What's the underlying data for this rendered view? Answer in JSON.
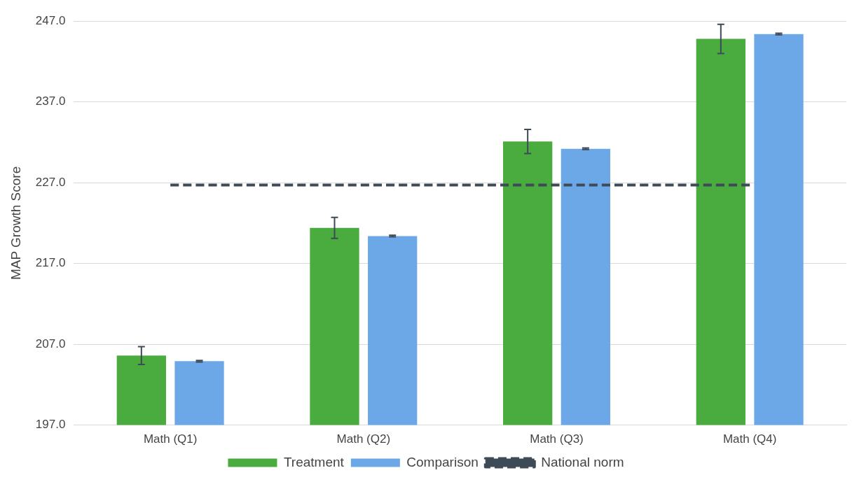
{
  "chart_data": {
    "type": "bar",
    "ylabel": "MAP Growth Score",
    "categories": [
      "Math (Q1)",
      "Math (Q2)",
      "Math (Q3)",
      "Math (Q4)"
    ],
    "series": [
      {
        "name": "Treatment",
        "color": "#4aab3e",
        "values": [
          205.6,
          221.4,
          232.1,
          244.8
        ],
        "errors": [
          1.1,
          1.3,
          1.5,
          1.8
        ]
      },
      {
        "name": "Comparison",
        "color": "#6ca8e8",
        "values": [
          204.9,
          220.4,
          231.2,
          245.4
        ],
        "errors": [
          0.1,
          0.1,
          0.1,
          0.1
        ]
      },
      {
        "name": "National norm",
        "type": "line",
        "color": "#3e4a56",
        "values": [
          226.7,
          226.7,
          226.7,
          226.7
        ],
        "line_style": "dashed",
        "marker": "none"
      }
    ],
    "ylim": [
      197,
      247
    ],
    "yticks": [
      {
        "value": 197,
        "label": "197.0"
      },
      {
        "value": 207,
        "label": "207.0"
      },
      {
        "value": 217,
        "label": "217.0"
      },
      {
        "value": 227,
        "label": "227.0"
      },
      {
        "value": 237,
        "label": "237.0"
      },
      {
        "value": 247,
        "label": "247.0"
      }
    ],
    "grid": "y",
    "legend": "bottom"
  }
}
